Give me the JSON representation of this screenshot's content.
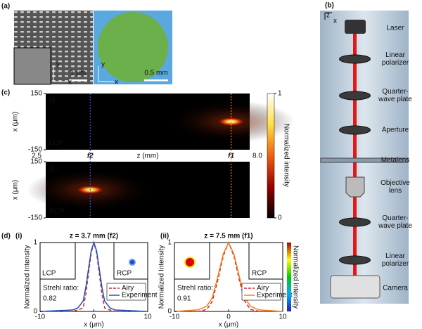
{
  "panel_a": {
    "label": "(a)",
    "sem_axes": [
      "y",
      "x"
    ],
    "sem_scale": "1 μm",
    "optical_axes": [
      "y",
      "x"
    ],
    "optical_scale": "0.5 mm"
  },
  "panel_b": {
    "label": "(b)",
    "axes": [
      "z",
      "x"
    ],
    "components": [
      [
        "Laser"
      ],
      [
        "Linear",
        "polarizer"
      ],
      [
        "Quarter-",
        "wave plate"
      ],
      [
        "Aperture"
      ],
      [
        "Metalens"
      ],
      [
        "Objective",
        "lens"
      ],
      [
        "Quarter-",
        "wave plate"
      ],
      [
        "Linear",
        "polarizer"
      ],
      [
        "Camera"
      ]
    ]
  },
  "panel_c": {
    "label": "(c)",
    "sub_labels": [
      "(i)",
      "(ii)"
    ],
    "polarizations": [
      "LCP",
      "RCP"
    ],
    "ylabel": "x (μm)",
    "ylim": [
      -150,
      150
    ],
    "yticks": [
      150,
      -150
    ],
    "xlabel": "z (mm)",
    "xlim": [
      2.5,
      8
    ],
    "xticks": [
      2.5,
      {
        "value": 8,
        "label": "8.0"
      }
    ],
    "foci": [
      "f2",
      "f1"
    ],
    "focus_z": [
      3.7,
      7.5
    ],
    "focus_colors": [
      "#3050d0",
      "#f08020"
    ],
    "colorbar_label": "Normalized intensity",
    "colorbar_ticks": [
      1,
      0
    ]
  },
  "panel_d": {
    "label": "(d)",
    "sub_labels": [
      "(i)",
      "(ii)"
    ]
  },
  "chart_data": [
    {
      "type": "line",
      "title": "z = 3.7 mm (f2)",
      "xlabel": "x (μm)",
      "ylabel": "Normalized Intensity",
      "xlim": [
        -10,
        10
      ],
      "ylim": [
        0,
        1
      ],
      "xticks": [
        -10,
        0,
        10
      ],
      "yticks": [
        0,
        1
      ],
      "x": [
        -10,
        -4,
        -3,
        -2,
        -1.5,
        -1,
        -0.5,
        0,
        0.5,
        1,
        1.5,
        2,
        3,
        4,
        10
      ],
      "series": [
        {
          "name": "Airy",
          "color": "#d62728",
          "values": [
            0,
            0,
            0.02,
            0.05,
            0.25,
            0.55,
            0.85,
            1,
            0.85,
            0.55,
            0.25,
            0.05,
            0.02,
            0,
            0
          ]
        },
        {
          "name": "Experiment",
          "color": "#2050c0",
          "values": [
            0,
            0.02,
            0.05,
            0.15,
            0.35,
            0.62,
            0.88,
            1,
            0.88,
            0.62,
            0.35,
            0.15,
            0.05,
            0.02,
            0
          ]
        }
      ],
      "inset_labels": [
        "LCP",
        "RCP"
      ],
      "strehl_label": "Strehl ratio:",
      "strehl_value": 0.82
    },
    {
      "type": "line",
      "title": "z = 7.5 mm (f1)",
      "xlabel": "x (μm)",
      "ylabel": "Normalized Intensity",
      "xlim": [
        -10,
        10
      ],
      "ylim": [
        0,
        1
      ],
      "xticks": [
        -10,
        0,
        10
      ],
      "yticks": [
        0,
        1
      ],
      "x": [
        -10,
        -6,
        -5,
        -4,
        -3,
        -2,
        -1,
        0,
        1,
        2,
        3,
        4,
        5,
        6,
        10
      ],
      "series": [
        {
          "name": "Airy",
          "color": "#d62728",
          "values": [
            0,
            0,
            0.01,
            0.03,
            0.15,
            0.45,
            0.8,
            1,
            0.8,
            0.45,
            0.15,
            0.03,
            0.01,
            0,
            0
          ]
        },
        {
          "name": "Experiment",
          "color": "#f08020",
          "values": [
            0,
            0.02,
            0.04,
            0.08,
            0.2,
            0.5,
            0.83,
            1,
            0.83,
            0.5,
            0.2,
            0.08,
            0.04,
            0.02,
            0
          ]
        }
      ],
      "inset_labels": [
        "",
        "RCP"
      ],
      "strehl_label": "Strehl ratio:",
      "strehl_value": 0.91,
      "colorbar_label": "Normalized intensity"
    }
  ]
}
